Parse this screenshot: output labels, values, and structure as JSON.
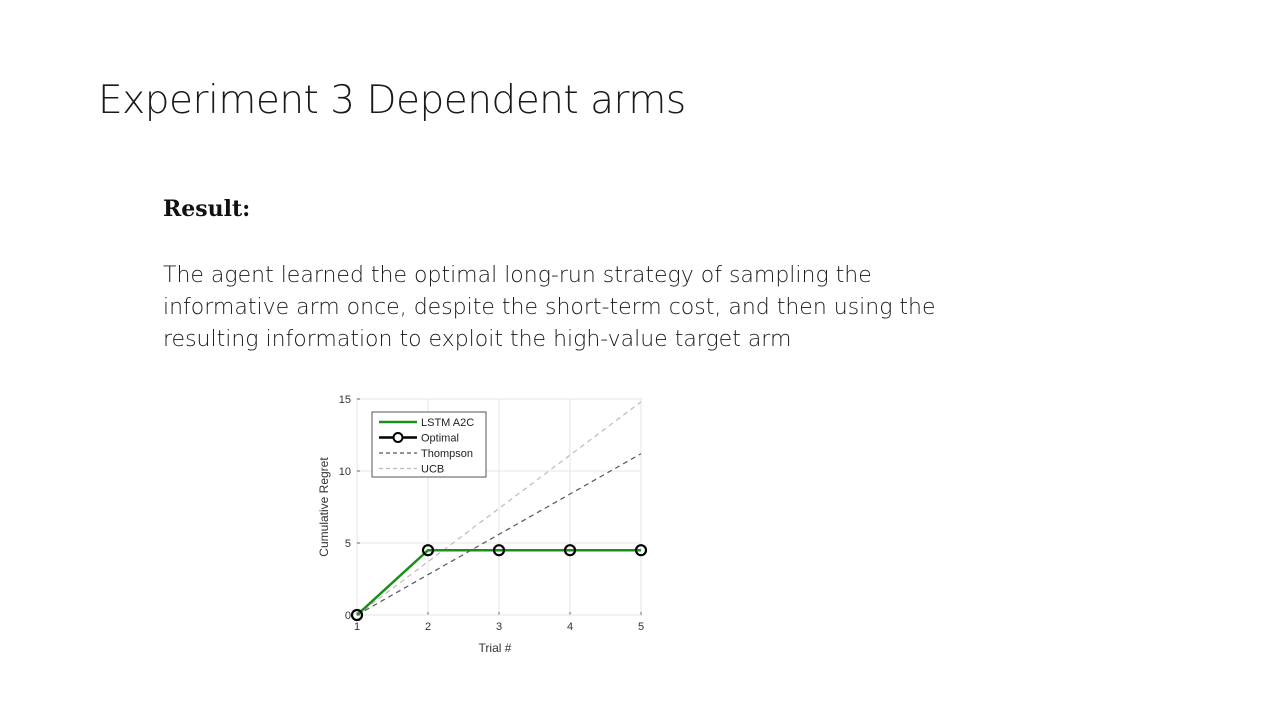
{
  "slide": {
    "title": "Experiment 3 Dependent arms",
    "result_heading": "Result:",
    "body": "The agent learned the optimal long-run strategy of sampling the informative arm once, despite the short-term cost, and then using the resulting information to exploit the high-value target arm"
  },
  "chart_data": {
    "type": "line",
    "title": "",
    "xlabel": "Trial #",
    "ylabel": "Cumulative Regret",
    "x": [
      1,
      2,
      3,
      4,
      5
    ],
    "xlim": [
      1,
      5
    ],
    "ylim": [
      0,
      15
    ],
    "xticks": [
      "1",
      "2",
      "3",
      "4",
      "5"
    ],
    "yticks": [
      "0",
      "5",
      "10",
      "15"
    ],
    "grid": true,
    "legend_position": "top-left",
    "series": [
      {
        "name": "LSTM A2C",
        "values": [
          0,
          4.5,
          4.5,
          4.5,
          4.5
        ],
        "color": "#1a8f1a",
        "style": "solid"
      },
      {
        "name": "Optimal",
        "values": [
          0,
          4.5,
          4.5,
          4.5,
          4.5
        ],
        "color": "#000000",
        "style": "circle-markers"
      },
      {
        "name": "Thompson",
        "values": [
          0,
          2.8,
          5.6,
          8.4,
          11.2
        ],
        "color": "#555555",
        "style": "dashed"
      },
      {
        "name": "UCB",
        "values": [
          0,
          3.7,
          7.4,
          11.1,
          14.8
        ],
        "color": "#bbbbbb",
        "style": "dashed"
      }
    ]
  }
}
